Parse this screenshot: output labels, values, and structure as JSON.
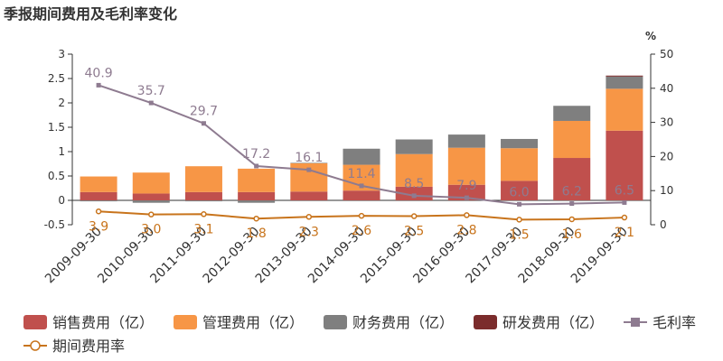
{
  "title": "季报期间费用及毛利率变化",
  "chart_data": {
    "type": "bar",
    "categories": [
      "2009-09-30",
      "2010-09-30",
      "2011-09-30",
      "2012-09-30",
      "2013-09-30",
      "2014-09-30",
      "2015-09-30",
      "2016-09-30",
      "2017-09-30",
      "2018-09-30",
      "2019-09-30"
    ],
    "series": [
      {
        "name": "销售费用（亿）",
        "type": "bar",
        "axis": "left",
        "color": "#c0504d",
        "values": [
          0.17,
          0.14,
          0.17,
          0.17,
          0.18,
          0.2,
          0.28,
          0.32,
          0.4,
          0.87,
          1.43
        ]
      },
      {
        "name": "管理费用（亿）",
        "type": "bar",
        "axis": "left",
        "color": "#f79646",
        "values": [
          0.32,
          0.43,
          0.53,
          0.48,
          0.58,
          0.53,
          0.67,
          0.76,
          0.67,
          0.76,
          0.86
        ]
      },
      {
        "name": "财务费用（亿）",
        "type": "bar",
        "axis": "left",
        "color": "#7f7f7f",
        "values": [
          -0.02,
          -0.05,
          -0.02,
          -0.05,
          0.01,
          0.33,
          0.3,
          0.27,
          0.19,
          0.31,
          0.25
        ]
      },
      {
        "name": "研发费用（亿）",
        "type": "bar",
        "axis": "left",
        "color": "#7b2c2c",
        "values": [
          0,
          0,
          0,
          0,
          0,
          0,
          0,
          0,
          0,
          0,
          0.02
        ]
      },
      {
        "name": "毛利率",
        "type": "line",
        "axis": "right",
        "color": "#8e7b90",
        "marker": "square",
        "values": [
          40.9,
          35.7,
          29.7,
          17.2,
          16.1,
          11.4,
          8.5,
          7.9,
          6.0,
          6.2,
          6.5
        ]
      },
      {
        "name": "期间费用率",
        "type": "line",
        "axis": "right",
        "color": "#c8741c",
        "marker": "circle",
        "values": [
          3.9,
          3.0,
          3.1,
          1.8,
          2.3,
          2.6,
          2.5,
          2.8,
          1.5,
          1.6,
          2.1
        ]
      }
    ],
    "y_left": {
      "range": [
        -0.5,
        3
      ],
      "ticks": [
        "-0.5",
        "0",
        "0.5",
        "1",
        "1.5",
        "2",
        "2.5",
        "3"
      ]
    },
    "y_right": {
      "label": "%",
      "range": [
        0,
        50
      ],
      "ticks": [
        "0",
        "10",
        "20",
        "30",
        "40",
        "50"
      ]
    },
    "legend_position": "bottom",
    "grid": false
  }
}
